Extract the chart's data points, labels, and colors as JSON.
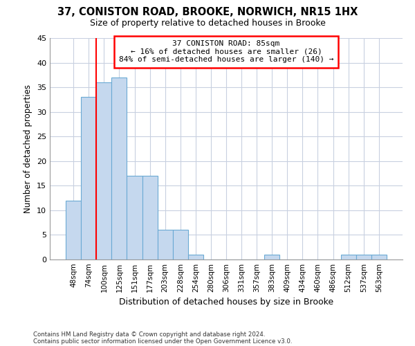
{
  "title_line1": "37, CONISTON ROAD, BROOKE, NORWICH, NR15 1HX",
  "title_line2": "Size of property relative to detached houses in Brooke",
  "xlabel": "Distribution of detached houses by size in Brooke",
  "ylabel": "Number of detached properties",
  "footer_line1": "Contains HM Land Registry data © Crown copyright and database right 2024.",
  "footer_line2": "Contains public sector information licensed under the Open Government Licence v3.0.",
  "categories": [
    "48sqm",
    "74sqm",
    "100sqm",
    "125sqm",
    "151sqm",
    "177sqm",
    "203sqm",
    "228sqm",
    "254sqm",
    "280sqm",
    "306sqm",
    "331sqm",
    "357sqm",
    "383sqm",
    "409sqm",
    "434sqm",
    "460sqm",
    "486sqm",
    "512sqm",
    "537sqm",
    "563sqm"
  ],
  "values": [
    12,
    33,
    36,
    37,
    17,
    17,
    6,
    6,
    1,
    0,
    0,
    0,
    0,
    1,
    0,
    0,
    0,
    0,
    1,
    1,
    1
  ],
  "bar_color": "#c5d8ee",
  "bar_edge_color": "#6aaad4",
  "background_color": "#ffffff",
  "grid_color": "#c8d0e0",
  "vline_x": 1.5,
  "vline_color": "red",
  "annotation_title": "37 CONISTON ROAD: 85sqm",
  "annotation_line2": "← 16% of detached houses are smaller (26)",
  "annotation_line3": "84% of semi-detached houses are larger (140) →",
  "annotation_box_color": "white",
  "annotation_box_edge_color": "red",
  "ylim": [
    0,
    45
  ],
  "yticks": [
    0,
    5,
    10,
    15,
    20,
    25,
    30,
    35,
    40,
    45
  ]
}
